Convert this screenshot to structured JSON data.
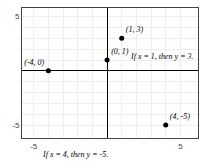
{
  "chart_data": {
    "type": "scatter",
    "x": [
      -4,
      0,
      1,
      4
    ],
    "values": [
      0,
      1,
      3,
      -5
    ],
    "value_labels": [
      "(-4, 0)",
      "(0, 1)",
      "(1, 3)",
      "(4, -5)"
    ],
    "color": "#000000",
    "xlim": [
      -5.8,
      6.2
    ],
    "ylim": [
      -6.2,
      5.8
    ],
    "xticks": [
      -5,
      {
        "value": -4,
        "label": null
      },
      {
        "value": -3,
        "label": null
      },
      {
        "value": -2,
        "label": null
      },
      {
        "value": -1,
        "label": null
      },
      {
        "value": 0,
        "label": null
      },
      {
        "value": 1,
        "label": null
      },
      {
        "value": 2,
        "label": null
      },
      {
        "value": 3,
        "label": null
      },
      {
        "value": 4,
        "label": null
      },
      5
    ],
    "yticks": [
      -5,
      {
        "value": -4,
        "label": null
      },
      {
        "value": -3,
        "label": null
      },
      {
        "value": -2,
        "label": null
      },
      {
        "value": -1,
        "label": null
      },
      {
        "value": 0,
        "label": null
      },
      {
        "value": 1,
        "label": null
      },
      {
        "value": 2,
        "label": null
      },
      {
        "value": 3,
        "label": null
      },
      {
        "value": 4,
        "label": null
      },
      5
    ],
    "grid": true,
    "annotations": [
      "If x = 1, then y = 3.",
      "If x = 4, then y = -5."
    ]
  }
}
